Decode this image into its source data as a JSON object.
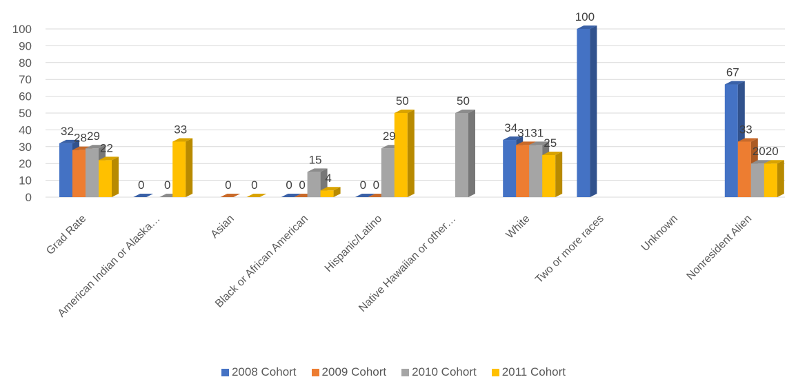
{
  "chart_data": {
    "type": "bar",
    "style": "3d-clustered-column",
    "categories": [
      "Grad Rate",
      "American Indian or Alaska…",
      "Asian",
      "Black or African American",
      "Hispanic/Latino",
      "Native Hawaiian or other…",
      "White",
      "Two or more races",
      "Unknown",
      "Nonresident Alien"
    ],
    "series": [
      {
        "name": "2008 Cohort",
        "color": "#4472C4",
        "values": [
          32,
          0,
          null,
          0,
          0,
          null,
          34,
          100,
          null,
          67
        ]
      },
      {
        "name": "2009 Cohort",
        "color": "#ED7D31",
        "values": [
          28,
          null,
          0,
          0,
          0,
          null,
          31,
          null,
          null,
          33
        ]
      },
      {
        "name": "2010 Cohort",
        "color": "#A5A5A5",
        "values": [
          29,
          0,
          null,
          15,
          29,
          50,
          31,
          null,
          null,
          20
        ]
      },
      {
        "name": "2011 Cohort",
        "color": "#FFC000",
        "values": [
          22,
          33,
          0,
          4,
          50,
          null,
          25,
          null,
          null,
          20
        ]
      }
    ],
    "ylim": [
      0,
      100
    ],
    "yticks": [
      0,
      10,
      20,
      30,
      40,
      50,
      60,
      70,
      80,
      90,
      100
    ],
    "grid": true,
    "legend_position": "bottom",
    "data_labels": true
  }
}
